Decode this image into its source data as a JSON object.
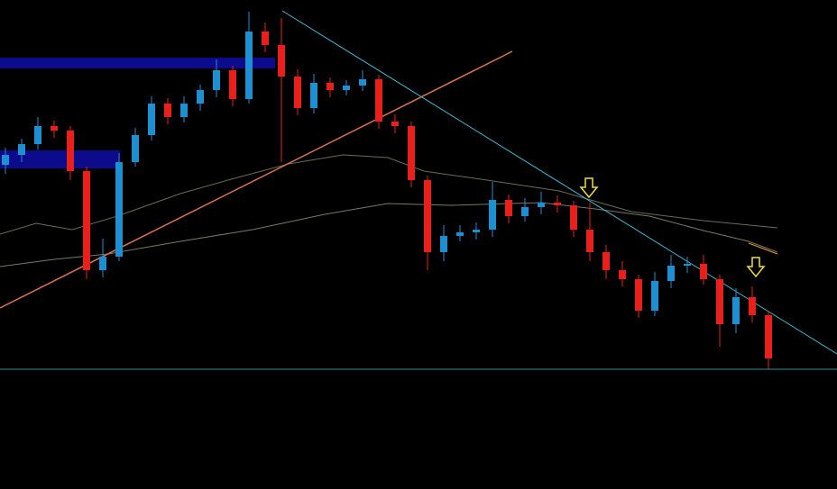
{
  "chart_data": {
    "type": "candlestick",
    "up_color": "#1e8fd0",
    "down_color": "#e8201c",
    "ylim": [
      0,
      543
    ],
    "open": [
      360,
      371,
      383,
      403,
      398,
      353,
      243,
      258,
      363,
      393,
      428,
      413,
      428,
      443,
      465,
      433,
      508,
      493,
      458,
      423,
      451,
      443,
      448,
      455,
      408,
      403,
      343,
      263,
      281,
      285,
      288,
      321,
      303,
      313,
      318,
      315,
      288,
      263,
      243,
      233,
      198,
      231,
      248,
      250,
      233,
      183,
      213,
      193
    ],
    "high": [
      379,
      389,
      413,
      409,
      403,
      358,
      278,
      373,
      401,
      436,
      434,
      436,
      449,
      477,
      470,
      530,
      518,
      523,
      466,
      461,
      457,
      454,
      465,
      460,
      416,
      408,
      348,
      293,
      293,
      296,
      341,
      327,
      323,
      330,
      326,
      320,
      318,
      271,
      253,
      238,
      241,
      260,
      258,
      260,
      238,
      223,
      225,
      198
    ],
    "low": [
      350,
      363,
      377,
      390,
      343,
      233,
      235,
      253,
      358,
      387,
      405,
      407,
      420,
      435,
      425,
      428,
      485,
      363,
      415,
      417,
      435,
      437,
      442,
      400,
      395,
      335,
      243,
      253,
      275,
      277,
      280,
      295,
      297,
      305,
      307,
      280,
      253,
      233,
      225,
      190,
      192,
      223,
      240,
      227,
      158,
      173,
      185,
      133
    ],
    "close": [
      371,
      383,
      403,
      398,
      353,
      243,
      258,
      363,
      393,
      428,
      413,
      428,
      443,
      465,
      433,
      508,
      493,
      458,
      423,
      451,
      443,
      448,
      455,
      408,
      403,
      343,
      263,
      281,
      285,
      288,
      321,
      303,
      313,
      318,
      315,
      288,
      263,
      243,
      233,
      198,
      231,
      248,
      250,
      233,
      183,
      213,
      193,
      145
    ]
  }
}
